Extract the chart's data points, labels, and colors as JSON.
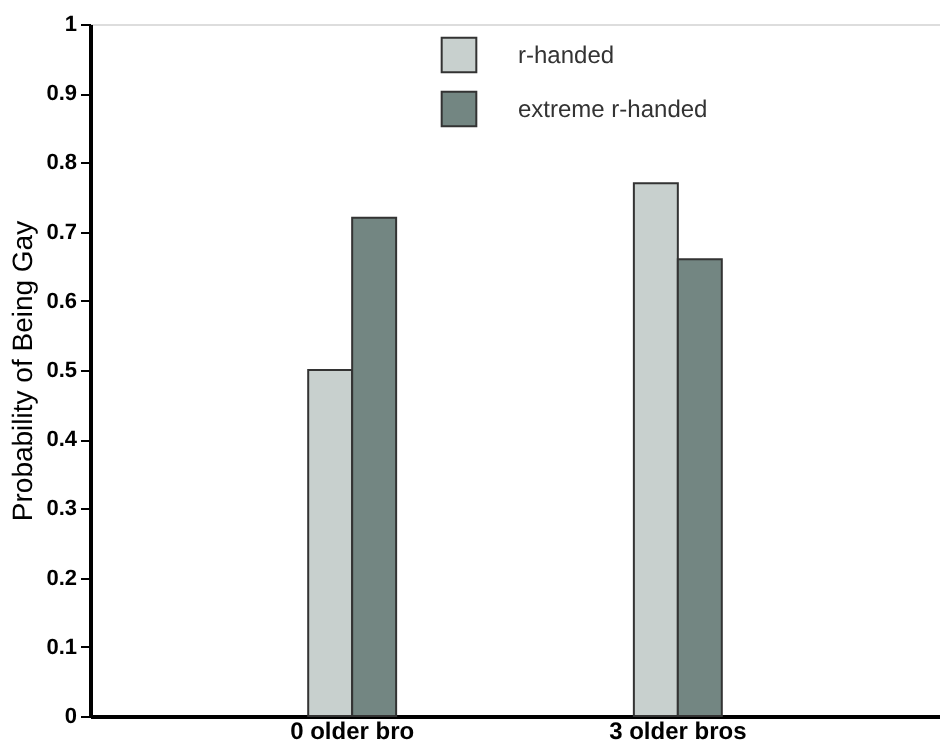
{
  "chart_data": {
    "type": "bar",
    "ylabel": "Probability of Being Gay",
    "categories": [
      "0 older bro",
      "3 older bros"
    ],
    "series": [
      {
        "name": "r-handed",
        "color": "#c8d0ce",
        "values": [
          0.5,
          0.77
        ]
      },
      {
        "name": "extreme  r-handed",
        "color": "#738682",
        "values": [
          0.72,
          0.66
        ]
      }
    ],
    "ylim": [
      0,
      1
    ],
    "yticks": [
      0,
      0.1,
      0.2,
      0.3,
      0.4,
      0.5,
      0.6,
      0.7,
      0.8,
      0.9,
      1
    ],
    "grid": false,
    "legend": "top"
  }
}
